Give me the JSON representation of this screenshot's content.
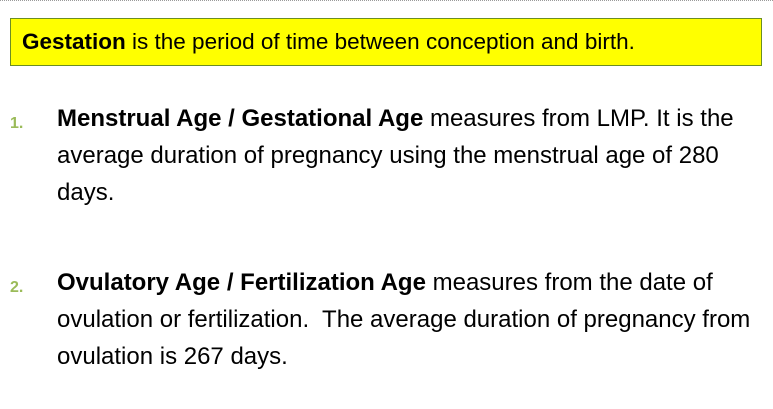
{
  "definition": {
    "term": "Gestation",
    "text": " is the period of time between conception and birth."
  },
  "list": {
    "items": [
      {
        "number": "1.",
        "term": "Menstrual Age / Gestational Age",
        "text": " measures from LMP. It is the average duration of pregnancy using the menstrual age of 280 days."
      },
      {
        "number": "2.",
        "term": "Ovulatory Age / Fertilization Age",
        "text": " measures from the date of ovulation or fertilization.  The average duration of pregnancy from ovulation is 267 days."
      }
    ]
  },
  "colors": {
    "highlight": "#ffff00",
    "box_border": "#6b8e23",
    "number": "#9bbb59",
    "text": "#000000"
  }
}
